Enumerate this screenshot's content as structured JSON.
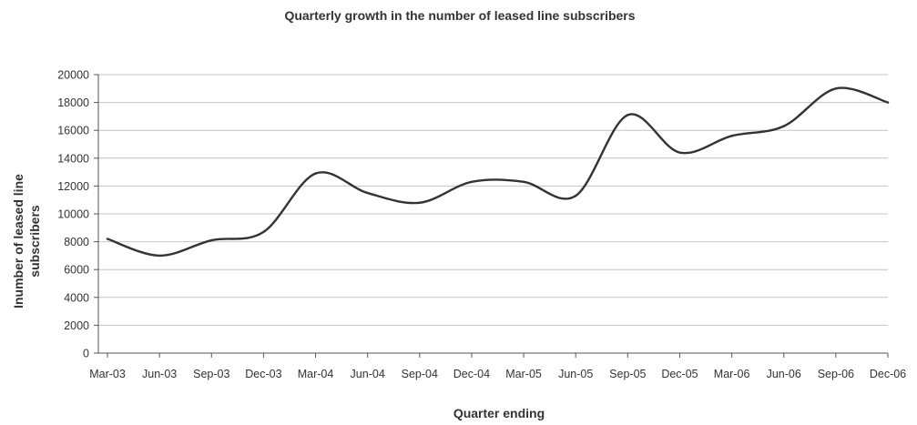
{
  "chart_data": {
    "type": "line",
    "title": "Quarterly growth in the number of leased line subscribers",
    "xlabel": "Quarter ending",
    "ylabel_lines": [
      "Inumber of leased line",
      "subscribers"
    ],
    "categories": [
      "Mar-03",
      "Jun-03",
      "Sep-03",
      "Dec-03",
      "Mar-04",
      "Jun-04",
      "Sep-04",
      "Dec-04",
      "Mar-05",
      "Jun-05",
      "Sep-05",
      "Dec-05",
      "Mar-06",
      "Jun-06",
      "Sep-06",
      "Dec-06"
    ],
    "series": [
      {
        "values": [
          8200,
          7000,
          8100,
          8700,
          12900,
          11500,
          10800,
          12300,
          12300,
          11300,
          17100,
          14400,
          15600,
          16300,
          19000,
          18000
        ]
      }
    ],
    "ylim": [
      0,
      20000
    ],
    "yticks": [
      0,
      2000,
      4000,
      6000,
      8000,
      10000,
      12000,
      14000,
      16000,
      18000,
      20000
    ],
    "grid": true,
    "legend": "none",
    "line_color": "#333333"
  }
}
